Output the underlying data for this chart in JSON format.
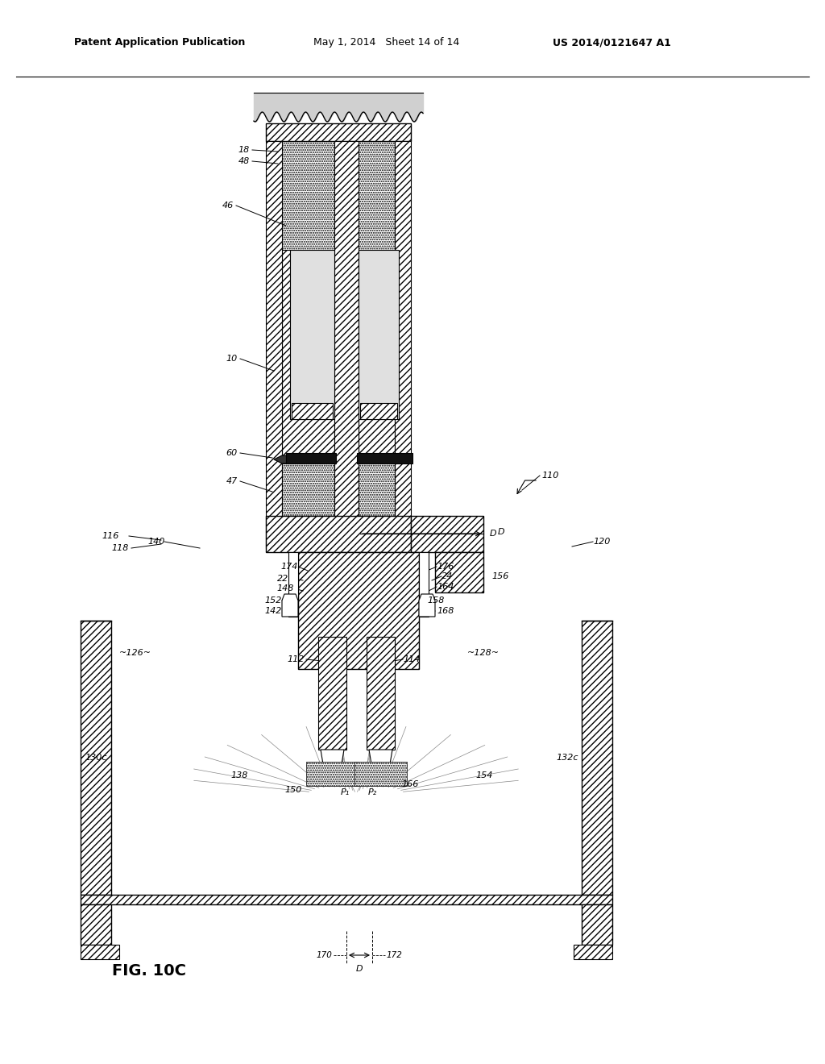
{
  "bg_color": "#ffffff",
  "header_text": "Patent Application Publication",
  "header_date": "May 1, 2014   Sheet 14 of 14",
  "header_patent": "US 2014/0121647 A1",
  "figure_label": "FIG. 10C"
}
